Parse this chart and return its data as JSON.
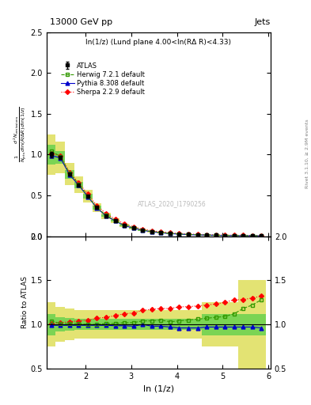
{
  "title_left": "13000 GeV pp",
  "title_right": "Jets",
  "subplot_title": "ln(1/z) (Lund plane 4.00<ln(RΔ R)<4.33)",
  "ylabel_main": "$\\frac{1}{N_{\\mathrm{jets}}}\\frac{d^2 N_{\\mathrm{emissions}}}{d\\ln(R/\\Delta R)\\,d\\ln(1/z)}$",
  "ylabel_ratio": "Ratio to ATLAS",
  "xlabel": "ln (1/z)",
  "right_label": "Rivet 3.1.10, ≥ 2.9M events",
  "watermark": "ATLAS_2020_I1790256",
  "x_data": [
    1.25,
    1.45,
    1.65,
    1.85,
    2.05,
    2.25,
    2.45,
    2.65,
    2.85,
    3.05,
    3.25,
    3.45,
    3.65,
    3.85,
    4.05,
    4.25,
    4.45,
    4.65,
    4.85,
    5.05,
    5.25,
    5.45,
    5.65,
    5.85
  ],
  "x_edges": [
    1.15,
    1.35,
    1.55,
    1.75,
    1.95,
    2.15,
    2.35,
    2.55,
    2.75,
    2.95,
    3.15,
    3.35,
    3.55,
    3.75,
    3.95,
    4.15,
    4.35,
    4.55,
    4.75,
    4.95,
    5.15,
    5.35,
    5.55,
    5.75,
    5.95
  ],
  "atlas_y": [
    1.0,
    0.97,
    0.76,
    0.63,
    0.49,
    0.35,
    0.25,
    0.19,
    0.13,
    0.1,
    0.07,
    0.055,
    0.042,
    0.033,
    0.025,
    0.02,
    0.016,
    0.013,
    0.01,
    0.008,
    0.006,
    0.005,
    0.004,
    0.003
  ],
  "atlas_yerr": [
    0.03,
    0.02,
    0.015,
    0.012,
    0.01,
    0.008,
    0.006,
    0.005,
    0.004,
    0.003,
    0.003,
    0.002,
    0.002,
    0.002,
    0.002,
    0.001,
    0.001,
    0.001,
    0.001,
    0.001,
    0.001,
    0.001,
    0.001,
    0.001
  ],
  "ratio_band_inner_lo": [
    0.88,
    0.92,
    0.93,
    0.94,
    0.94,
    0.94,
    0.94,
    0.94,
    0.94,
    0.94,
    0.94,
    0.94,
    0.94,
    0.94,
    0.94,
    0.94,
    0.94,
    0.88,
    0.88,
    0.88,
    0.88,
    0.88,
    0.88,
    0.88
  ],
  "ratio_band_inner_hi": [
    1.12,
    1.08,
    1.07,
    1.06,
    1.06,
    1.06,
    1.06,
    1.06,
    1.06,
    1.06,
    1.06,
    1.06,
    1.06,
    1.06,
    1.06,
    1.06,
    1.06,
    1.12,
    1.12,
    1.12,
    1.12,
    1.12,
    1.12,
    1.12
  ],
  "ratio_band_outer_lo": [
    0.75,
    0.8,
    0.82,
    0.84,
    0.84,
    0.84,
    0.84,
    0.84,
    0.84,
    0.84,
    0.84,
    0.84,
    0.84,
    0.84,
    0.84,
    0.84,
    0.84,
    0.75,
    0.75,
    0.75,
    0.75,
    0.5,
    0.5,
    0.5
  ],
  "ratio_band_outer_hi": [
    1.25,
    1.2,
    1.18,
    1.16,
    1.16,
    1.16,
    1.16,
    1.16,
    1.16,
    1.16,
    1.16,
    1.16,
    1.16,
    1.16,
    1.16,
    1.16,
    1.16,
    1.25,
    1.25,
    1.25,
    1.25,
    1.5,
    1.5,
    1.5
  ],
  "herwig_y": [
    1.04,
    0.98,
    0.77,
    0.64,
    0.49,
    0.35,
    0.255,
    0.192,
    0.133,
    0.102,
    0.073,
    0.057,
    0.044,
    0.034,
    0.026,
    0.021,
    0.017,
    0.014,
    0.011,
    0.009,
    0.007,
    0.006,
    0.005,
    0.004
  ],
  "herwig_ratio": [
    1.04,
    1.01,
    1.01,
    1.01,
    1.0,
    1.0,
    1.01,
    1.01,
    1.02,
    1.02,
    1.04,
    1.04,
    1.05,
    1.03,
    1.04,
    1.05,
    1.06,
    1.07,
    1.08,
    1.09,
    1.12,
    1.18,
    1.22,
    1.28
  ],
  "pythia_y": [
    0.99,
    0.96,
    0.755,
    0.625,
    0.485,
    0.345,
    0.248,
    0.187,
    0.128,
    0.098,
    0.07,
    0.054,
    0.041,
    0.032,
    0.024,
    0.019,
    0.015,
    0.013,
    0.01,
    0.008,
    0.006,
    0.005,
    0.004,
    0.003
  ],
  "pythia_ratio": [
    0.99,
    0.99,
    0.99,
    0.99,
    0.99,
    0.99,
    0.99,
    0.985,
    0.985,
    0.98,
    1.0,
    0.98,
    0.98,
    0.97,
    0.96,
    0.96,
    0.96,
    0.97,
    0.97,
    0.97,
    0.97,
    0.97,
    0.97,
    0.96
  ],
  "sherpa_y": [
    1.01,
    0.99,
    0.785,
    0.655,
    0.515,
    0.375,
    0.275,
    0.21,
    0.148,
    0.115,
    0.085,
    0.067,
    0.052,
    0.042,
    0.033,
    0.027,
    0.022,
    0.019,
    0.015,
    0.013,
    0.011,
    0.01,
    0.009,
    0.008
  ],
  "sherpa_ratio": [
    1.01,
    1.02,
    1.03,
    1.04,
    1.05,
    1.07,
    1.08,
    1.1,
    1.12,
    1.13,
    1.16,
    1.17,
    1.18,
    1.18,
    1.2,
    1.2,
    1.21,
    1.22,
    1.23,
    1.25,
    1.28,
    1.28,
    1.3,
    1.32
  ],
  "color_atlas": "#000000",
  "color_herwig": "#339900",
  "color_pythia": "#0000cc",
  "color_sherpa": "#ff0000",
  "color_band_inner": "#44cc44",
  "color_band_outer": "#cccc00",
  "ylim_main": [
    0.0,
    2.5
  ],
  "ylim_ratio": [
    0.5,
    2.0
  ],
  "xlim": [
    1.15,
    6.05
  ]
}
